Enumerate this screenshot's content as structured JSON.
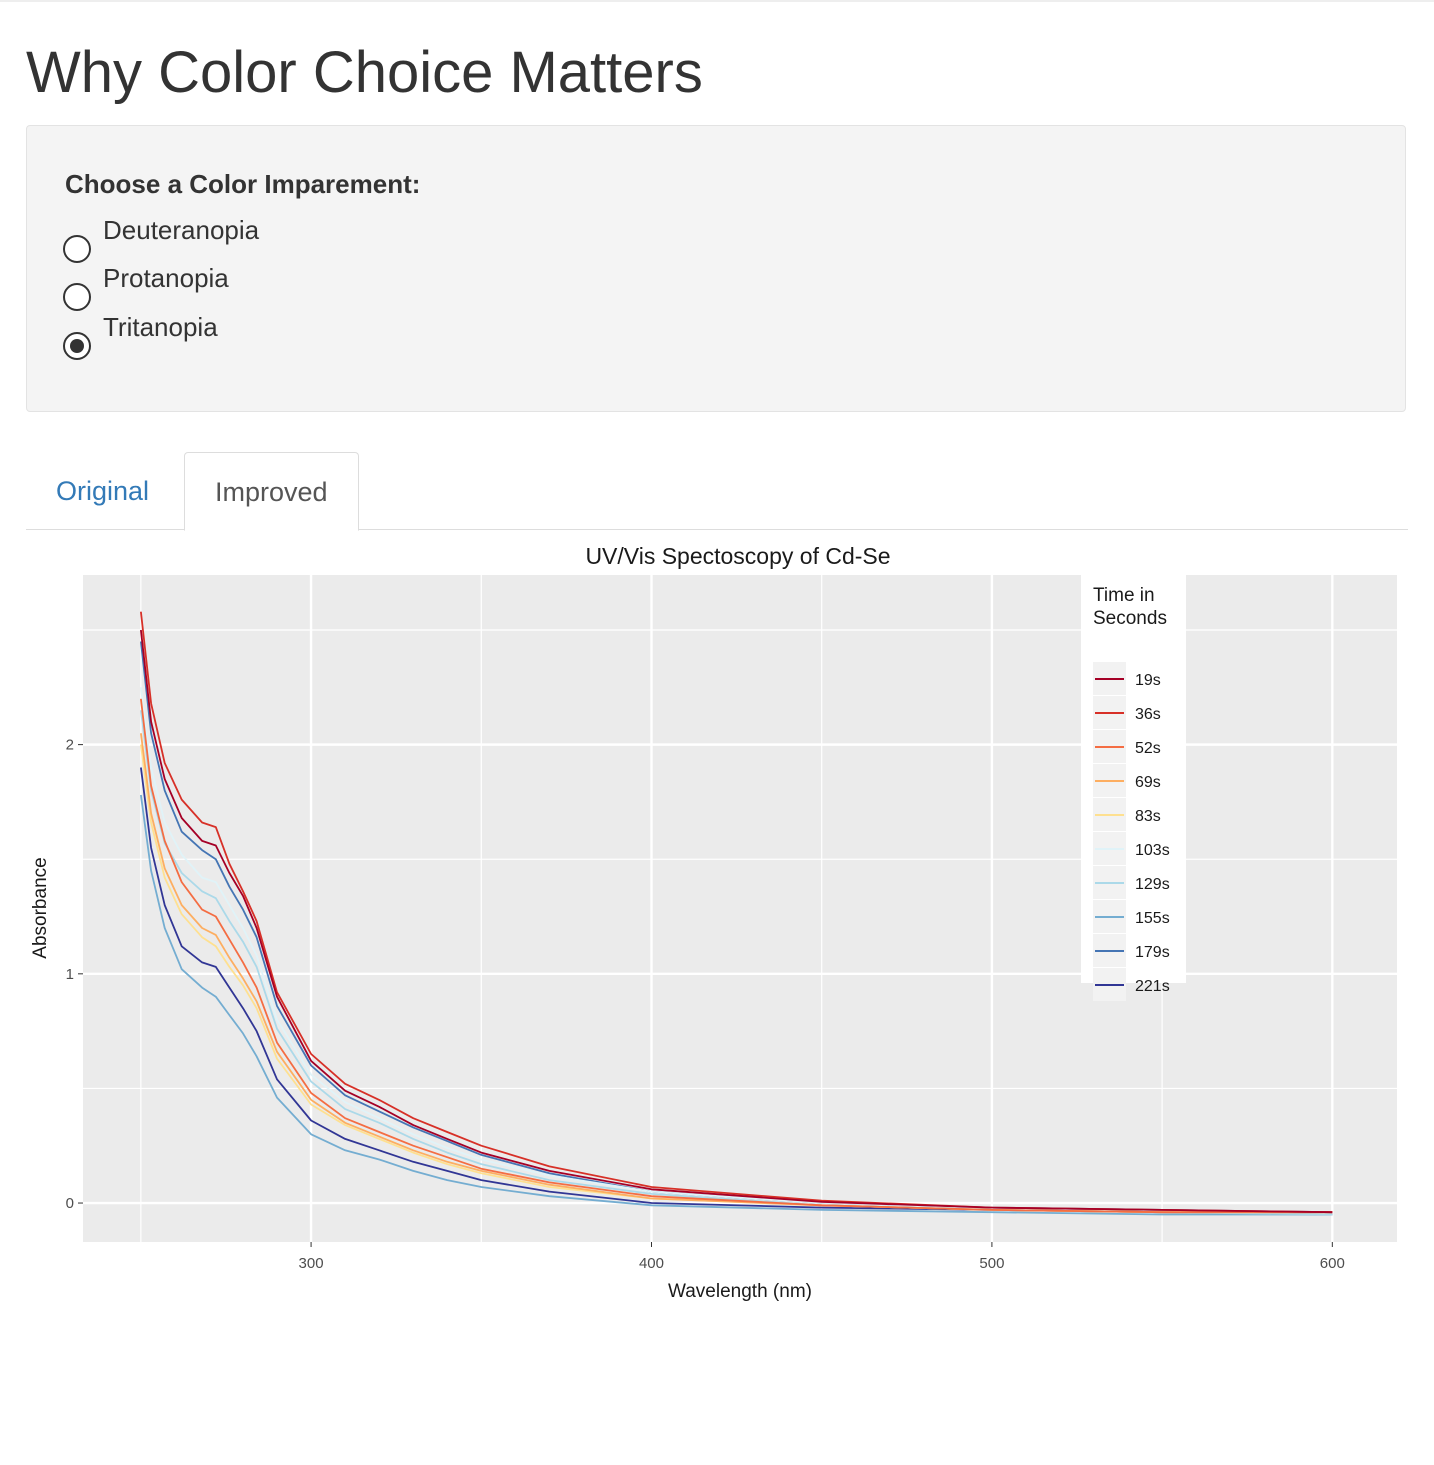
{
  "page": {
    "title": "Why Color Choice Matters"
  },
  "controls": {
    "label": "Choose a Color Imparement:",
    "options": [
      "Deuteranopia",
      "Protanopia",
      "Tritanopia"
    ],
    "selected": "Tritanopia"
  },
  "tabs": [
    {
      "label": "Original",
      "active": false
    },
    {
      "label": "Improved",
      "active": true
    }
  ],
  "chart_data": {
    "type": "line",
    "title": "UV/Vis Spectoscopy of Cd-Se",
    "xlabel": "Wavelength (nm)",
    "ylabel": "Absorbance",
    "xlim": [
      233,
      619
    ],
    "ylim": [
      -0.17,
      2.74
    ],
    "xticks": [
      300,
      400,
      500,
      600
    ],
    "yticks": [
      0,
      1,
      2
    ],
    "grid": true,
    "legend": {
      "title_lines": [
        "Time in",
        "Seconds"
      ],
      "position": "top-right"
    },
    "x": [
      250,
      253,
      257,
      262,
      268,
      272,
      276,
      280,
      284,
      290,
      300,
      310,
      320,
      330,
      340,
      350,
      370,
      400,
      450,
      500,
      550,
      600
    ],
    "series": [
      {
        "name": "19s",
        "color": "#a50026",
        "values": [
          2.5,
          2.1,
          1.85,
          1.68,
          1.58,
          1.56,
          1.44,
          1.34,
          1.2,
          0.9,
          0.62,
          0.49,
          0.42,
          0.34,
          0.28,
          0.22,
          0.14,
          0.06,
          0.005,
          -0.02,
          -0.03,
          -0.04
        ]
      },
      {
        "name": "36s",
        "color": "#d73027",
        "values": [
          2.58,
          2.18,
          1.92,
          1.76,
          1.66,
          1.64,
          1.48,
          1.36,
          1.23,
          0.92,
          0.65,
          0.52,
          0.45,
          0.37,
          0.31,
          0.25,
          0.16,
          0.07,
          0.01,
          -0.02,
          -0.03,
          -0.04
        ]
      },
      {
        "name": "52s",
        "color": "#f46d43",
        "values": [
          2.2,
          1.82,
          1.58,
          1.4,
          1.28,
          1.25,
          1.15,
          1.05,
          0.94,
          0.7,
          0.48,
          0.37,
          0.31,
          0.25,
          0.2,
          0.15,
          0.09,
          0.03,
          -0.01,
          -0.03,
          -0.04,
          -0.04
        ]
      },
      {
        "name": "69s",
        "color": "#fdae61",
        "values": [
          2.05,
          1.7,
          1.46,
          1.3,
          1.2,
          1.17,
          1.07,
          0.98,
          0.88,
          0.66,
          0.45,
          0.35,
          0.29,
          0.23,
          0.18,
          0.14,
          0.08,
          0.02,
          -0.01,
          -0.03,
          -0.04,
          -0.04
        ]
      },
      {
        "name": "83s",
        "color": "#fee090",
        "values": [
          2.0,
          1.66,
          1.42,
          1.26,
          1.16,
          1.12,
          1.03,
          0.95,
          0.85,
          0.63,
          0.43,
          0.34,
          0.28,
          0.22,
          0.17,
          0.13,
          0.07,
          0.02,
          -0.01,
          -0.03,
          -0.04,
          -0.04
        ]
      },
      {
        "name": "103s",
        "color": "#e0f3f8",
        "values": [
          2.25,
          1.9,
          1.66,
          1.52,
          1.42,
          1.4,
          1.3,
          1.2,
          1.08,
          0.8,
          0.56,
          0.44,
          0.37,
          0.3,
          0.24,
          0.19,
          0.12,
          0.05,
          0.0,
          -0.02,
          -0.03,
          -0.04
        ]
      },
      {
        "name": "129s",
        "color": "#abd9e9",
        "values": [
          2.15,
          1.8,
          1.57,
          1.44,
          1.36,
          1.33,
          1.23,
          1.14,
          1.03,
          0.76,
          0.53,
          0.41,
          0.35,
          0.28,
          0.22,
          0.17,
          0.1,
          0.04,
          -0.01,
          -0.03,
          -0.04,
          -0.05
        ]
      },
      {
        "name": "155s",
        "color": "#74add1",
        "values": [
          1.78,
          1.45,
          1.2,
          1.02,
          0.94,
          0.9,
          0.82,
          0.74,
          0.64,
          0.46,
          0.3,
          0.23,
          0.19,
          0.14,
          0.1,
          0.07,
          0.03,
          -0.01,
          -0.03,
          -0.04,
          -0.05,
          -0.05
        ]
      },
      {
        "name": "179s",
        "color": "#4575b4",
        "values": [
          2.45,
          2.05,
          1.8,
          1.62,
          1.54,
          1.5,
          1.38,
          1.28,
          1.16,
          0.86,
          0.6,
          0.47,
          0.4,
          0.33,
          0.27,
          0.21,
          0.13,
          0.05,
          0.0,
          -0.02,
          -0.03,
          -0.04
        ]
      },
      {
        "name": "221s",
        "color": "#313695",
        "values": [
          1.9,
          1.55,
          1.3,
          1.12,
          1.05,
          1.03,
          0.94,
          0.85,
          0.75,
          0.54,
          0.36,
          0.28,
          0.23,
          0.18,
          0.14,
          0.1,
          0.05,
          0.0,
          -0.02,
          -0.03,
          -0.04,
          -0.05
        ]
      }
    ]
  }
}
